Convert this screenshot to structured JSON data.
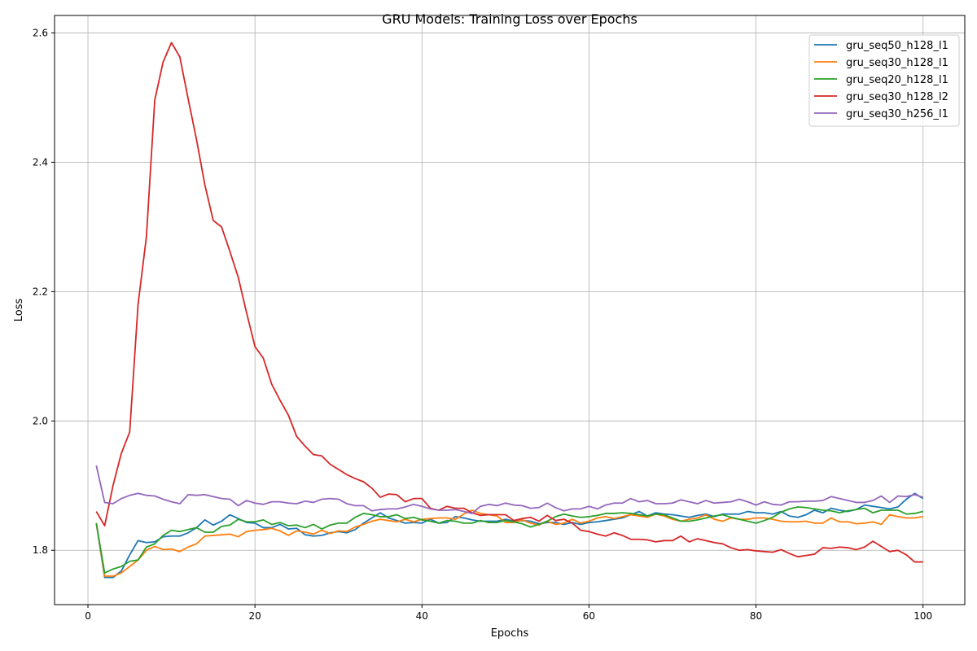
{
  "chart_data": {
    "type": "line",
    "title": "GRU Models: Training Loss over Epochs",
    "xlabel": "Epochs",
    "ylabel": "Loss",
    "xlim": [
      -4,
      105
    ],
    "ylim": [
      1.716,
      2.627
    ],
    "xticks": [
      0,
      20,
      40,
      60,
      80,
      100
    ],
    "yticks": [
      1.8,
      2.0,
      2.2,
      2.4,
      2.6
    ],
    "xtick_labels": [
      "0",
      "20",
      "40",
      "60",
      "80",
      "100"
    ],
    "ytick_labels": [
      "1.8",
      "2.0",
      "2.2",
      "2.4",
      "2.6"
    ],
    "grid": true,
    "legend_position": "top-right",
    "series": [
      {
        "name": "gru_seq50_h128_l1",
        "color": "#1f77b4",
        "values": [
          1.842,
          1.758,
          1.758,
          1.768,
          1.793,
          1.815,
          1.812,
          1.813,
          1.821,
          1.822,
          1.822,
          1.827,
          1.835,
          1.847,
          1.839,
          1.845,
          1.855,
          1.849,
          1.843,
          1.842,
          1.835,
          1.835,
          1.84,
          1.833,
          1.834,
          1.824,
          1.822,
          1.823,
          1.827,
          1.829,
          1.827,
          1.832,
          1.842,
          1.85,
          1.858,
          1.85,
          1.846,
          1.842,
          1.843,
          1.842,
          1.848,
          1.842,
          1.843,
          1.852,
          1.85,
          1.847,
          1.845,
          1.845,
          1.845,
          1.848,
          1.845,
          1.846,
          1.845,
          1.841,
          1.843,
          1.843,
          1.84,
          1.843,
          1.84,
          1.843,
          1.844,
          1.846,
          1.848,
          1.85,
          1.855,
          1.86,
          1.853,
          1.858,
          1.856,
          1.855,
          1.853,
          1.851,
          1.854,
          1.856,
          1.852,
          1.856,
          1.856,
          1.856,
          1.86,
          1.858,
          1.858,
          1.856,
          1.86,
          1.853,
          1.851,
          1.855,
          1.862,
          1.858,
          1.865,
          1.862,
          1.86,
          1.863,
          1.87,
          1.868,
          1.866,
          1.864,
          1.867,
          1.879,
          1.888,
          1.88
        ]
      },
      {
        "name": "gru_seq30_h128_l1",
        "color": "#ff7f0e",
        "values": [
          1.842,
          1.76,
          1.76,
          1.765,
          1.775,
          1.785,
          1.8,
          1.806,
          1.801,
          1.802,
          1.798,
          1.805,
          1.81,
          1.822,
          1.823,
          1.824,
          1.825,
          1.821,
          1.829,
          1.831,
          1.832,
          1.834,
          1.83,
          1.823,
          1.83,
          1.828,
          1.825,
          1.831,
          1.826,
          1.83,
          1.829,
          1.836,
          1.84,
          1.845,
          1.848,
          1.846,
          1.844,
          1.848,
          1.844,
          1.848,
          1.849,
          1.85,
          1.85,
          1.848,
          1.856,
          1.862,
          1.857,
          1.855,
          1.853,
          1.843,
          1.843,
          1.847,
          1.842,
          1.839,
          1.845,
          1.84,
          1.842,
          1.848,
          1.842,
          1.845,
          1.85,
          1.852,
          1.849,
          1.852,
          1.855,
          1.853,
          1.851,
          1.856,
          1.853,
          1.848,
          1.845,
          1.848,
          1.85,
          1.855,
          1.848,
          1.845,
          1.85,
          1.848,
          1.848,
          1.85,
          1.85,
          1.848,
          1.845,
          1.844,
          1.844,
          1.845,
          1.842,
          1.842,
          1.85,
          1.844,
          1.844,
          1.841,
          1.842,
          1.844,
          1.84,
          1.855,
          1.852,
          1.85,
          1.85,
          1.852
        ]
      },
      {
        "name": "gru_seq20_h128_l1",
        "color": "#2ca02c",
        "values": [
          1.842,
          1.765,
          1.771,
          1.775,
          1.783,
          1.785,
          1.805,
          1.81,
          1.823,
          1.831,
          1.829,
          1.832,
          1.835,
          1.828,
          1.828,
          1.837,
          1.839,
          1.848,
          1.844,
          1.844,
          1.847,
          1.84,
          1.843,
          1.838,
          1.839,
          1.835,
          1.84,
          1.833,
          1.839,
          1.842,
          1.842,
          1.851,
          1.857,
          1.855,
          1.852,
          1.852,
          1.855,
          1.849,
          1.851,
          1.847,
          1.845,
          1.842,
          1.846,
          1.845,
          1.842,
          1.842,
          1.846,
          1.843,
          1.843,
          1.846,
          1.844,
          1.841,
          1.836,
          1.84,
          1.845,
          1.852,
          1.856,
          1.853,
          1.851,
          1.852,
          1.854,
          1.857,
          1.857,
          1.858,
          1.857,
          1.855,
          1.853,
          1.856,
          1.855,
          1.85,
          1.845,
          1.845,
          1.847,
          1.85,
          1.853,
          1.855,
          1.851,
          1.848,
          1.845,
          1.842,
          1.846,
          1.851,
          1.859,
          1.864,
          1.867,
          1.866,
          1.864,
          1.862,
          1.861,
          1.858,
          1.861,
          1.863,
          1.865,
          1.858,
          1.862,
          1.862,
          1.862,
          1.856,
          1.857,
          1.86
        ]
      },
      {
        "name": "gru_seq30_h128_l2",
        "color": "#d62728",
        "values": [
          1.86,
          1.838,
          1.9,
          1.95,
          1.983,
          2.18,
          2.285,
          2.496,
          2.555,
          2.585,
          2.563,
          2.498,
          2.435,
          2.365,
          2.31,
          2.3,
          2.262,
          2.222,
          2.167,
          2.115,
          2.097,
          2.057,
          2.032,
          2.009,
          1.976,
          1.961,
          1.948,
          1.946,
          1.933,
          1.925,
          1.917,
          1.911,
          1.906,
          1.896,
          1.882,
          1.887,
          1.886,
          1.875,
          1.88,
          1.88,
          1.865,
          1.862,
          1.868,
          1.865,
          1.865,
          1.858,
          1.854,
          1.855,
          1.855,
          1.855,
          1.846,
          1.849,
          1.851,
          1.845,
          1.854,
          1.846,
          1.848,
          1.842,
          1.831,
          1.829,
          1.825,
          1.822,
          1.827,
          1.823,
          1.817,
          1.817,
          1.816,
          1.813,
          1.815,
          1.815,
          1.822,
          1.813,
          1.818,
          1.815,
          1.812,
          1.81,
          1.804,
          1.8,
          1.801,
          1.799,
          1.798,
          1.797,
          1.801,
          1.795,
          1.79,
          1.792,
          1.794,
          1.804,
          1.803,
          1.805,
          1.804,
          1.801,
          1.805,
          1.814,
          1.806,
          1.798,
          1.8,
          1.793,
          1.782,
          1.782
        ]
      },
      {
        "name": "gru_seq30_h256_l1",
        "color": "#9467bd",
        "values": [
          1.931,
          1.874,
          1.872,
          1.88,
          1.885,
          1.888,
          1.885,
          1.884,
          1.879,
          1.875,
          1.872,
          1.886,
          1.885,
          1.886,
          1.883,
          1.88,
          1.879,
          1.869,
          1.877,
          1.873,
          1.871,
          1.875,
          1.875,
          1.873,
          1.872,
          1.876,
          1.874,
          1.879,
          1.88,
          1.879,
          1.872,
          1.869,
          1.869,
          1.861,
          1.863,
          1.864,
          1.864,
          1.867,
          1.871,
          1.868,
          1.864,
          1.862,
          1.862,
          1.863,
          1.86,
          1.857,
          1.868,
          1.871,
          1.869,
          1.873,
          1.87,
          1.869,
          1.865,
          1.866,
          1.873,
          1.866,
          1.861,
          1.864,
          1.864,
          1.868,
          1.864,
          1.87,
          1.873,
          1.873,
          1.88,
          1.875,
          1.877,
          1.872,
          1.872,
          1.873,
          1.878,
          1.875,
          1.872,
          1.877,
          1.873,
          1.874,
          1.875,
          1.879,
          1.875,
          1.87,
          1.875,
          1.871,
          1.87,
          1.875,
          1.875,
          1.876,
          1.876,
          1.877,
          1.883,
          1.88,
          1.877,
          1.874,
          1.874,
          1.877,
          1.884,
          1.874,
          1.884,
          1.883,
          1.886,
          1.882
        ]
      }
    ]
  }
}
